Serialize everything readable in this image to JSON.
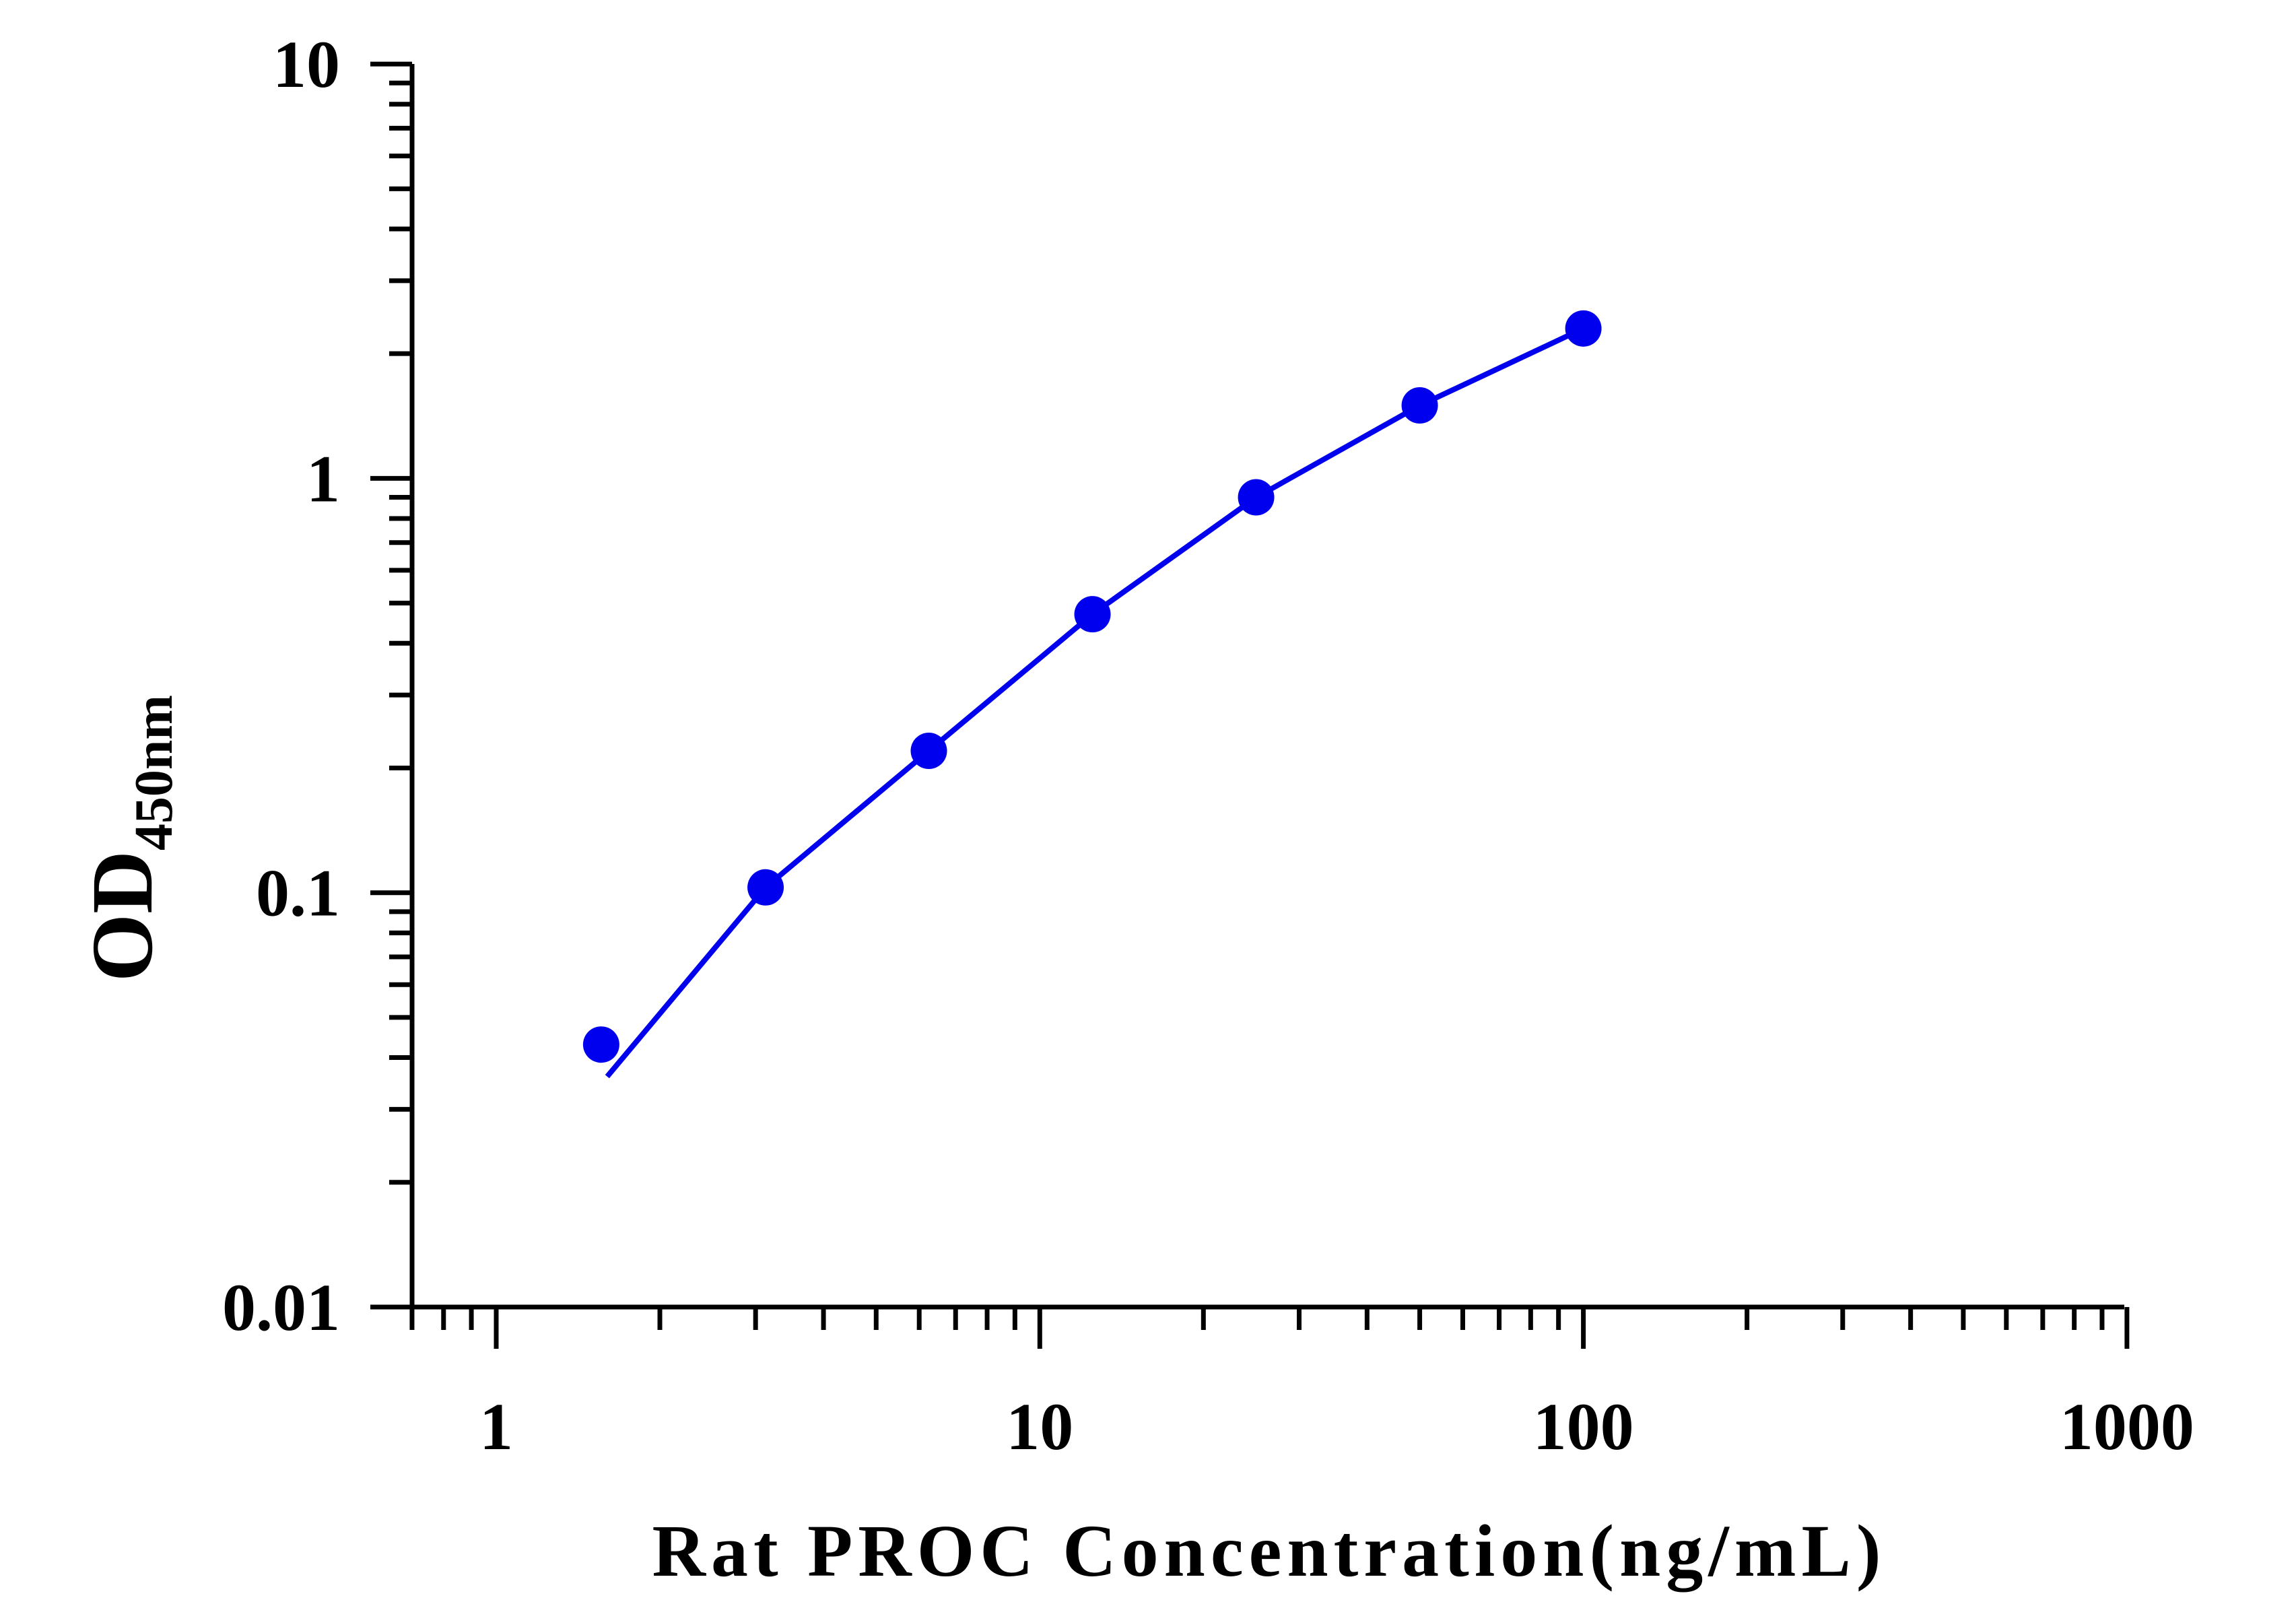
{
  "chart_data": {
    "type": "line",
    "xlabel": "Rat PROC Concentration(ng/mL)",
    "ylabel": {
      "main": "OD",
      "subscript": "450nm"
    },
    "x_scale": "log",
    "y_scale": "log",
    "xlim": [
      0.7,
      1000
    ],
    "ylim": [
      0.01,
      10
    ],
    "x_tick_labels": [
      "1",
      "10",
      "100",
      "1000"
    ],
    "y_tick_labels": [
      "0.01",
      "0.1",
      "1",
      "10"
    ],
    "grid": false,
    "legend": "none",
    "series": [
      {
        "color": "#0000ee",
        "points": [
          {
            "x": 1.56,
            "y": 0.043
          },
          {
            "x": 3.13,
            "y": 0.103
          },
          {
            "x": 6.25,
            "y": 0.22
          },
          {
            "x": 12.5,
            "y": 0.47
          },
          {
            "x": 25,
            "y": 0.9
          },
          {
            "x": 50,
            "y": 1.5
          },
          {
            "x": 100,
            "y": 2.3
          }
        ],
        "fit_line": [
          {
            "x": 1.6,
            "y": 0.036
          },
          {
            "x": 3.13,
            "y": 0.103
          },
          {
            "x": 6.25,
            "y": 0.22
          },
          {
            "x": 12.5,
            "y": 0.47
          },
          {
            "x": 25,
            "y": 0.9
          },
          {
            "x": 50,
            "y": 1.5
          },
          {
            "x": 100,
            "y": 2.3
          }
        ]
      }
    ]
  }
}
